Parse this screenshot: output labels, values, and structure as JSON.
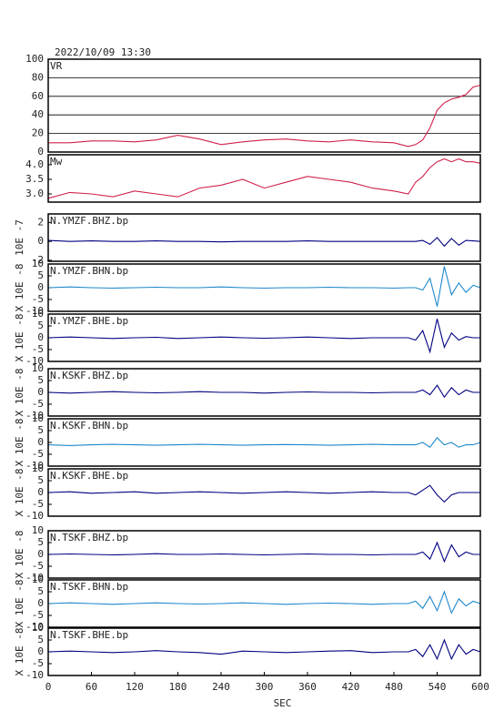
{
  "chart_data": [
    {
      "type": "line",
      "title": "2022/10/09 13:30",
      "label": "VR",
      "color": "#d0204a",
      "grid": true,
      "x": [
        0,
        30,
        60,
        90,
        120,
        150,
        180,
        210,
        240,
        270,
        300,
        330,
        360,
        390,
        420,
        450,
        480,
        500,
        510,
        520,
        530,
        540,
        550,
        560,
        570,
        580,
        590,
        600
      ],
      "values": [
        10,
        10,
        12,
        12,
        11,
        13,
        18,
        14,
        8,
        11,
        13,
        14,
        12,
        11,
        13,
        11,
        10,
        6,
        8,
        13,
        26,
        45,
        53,
        57,
        59,
        62,
        70,
        72
      ],
      "xlim": [
        0,
        600
      ],
      "ylim": [
        0,
        100
      ],
      "yticks": [
        0,
        20,
        40,
        60,
        80,
        100
      ]
    },
    {
      "type": "line",
      "label": "Mw",
      "color": "#d0204a",
      "x": [
        0,
        30,
        60,
        90,
        120,
        150,
        180,
        210,
        240,
        270,
        300,
        330,
        360,
        390,
        420,
        450,
        480,
        500,
        510,
        520,
        530,
        540,
        550,
        560,
        570,
        580,
        590,
        600
      ],
      "values": [
        2.85,
        3.05,
        3.0,
        2.9,
        3.1,
        3.0,
        2.9,
        3.2,
        3.3,
        3.5,
        3.2,
        3.4,
        3.6,
        3.5,
        3.4,
        3.2,
        3.1,
        3.0,
        3.4,
        3.6,
        3.9,
        4.1,
        4.2,
        4.1,
        4.2,
        4.1,
        4.1,
        4.05
      ],
      "xlim": [
        0,
        600
      ],
      "ylim": [
        2.72,
        4.34
      ],
      "yticks": [
        {
          "value": 3,
          "label": "3.0"
        },
        {
          "value": 3.5,
          "label": "3.5"
        },
        {
          "value": 4,
          "label": "4.0"
        }
      ]
    },
    {
      "type": "line",
      "label": "N.YMZF.BHZ.bp",
      "ylabel": "10E -7",
      "color": "#000080",
      "x": [
        0,
        30,
        60,
        90,
        120,
        150,
        180,
        210,
        240,
        270,
        300,
        330,
        360,
        390,
        420,
        450,
        480,
        500,
        510,
        520,
        530,
        540,
        550,
        560,
        570,
        580,
        590,
        600
      ],
      "values": [
        0.1,
        0,
        0.05,
        0,
        0,
        0.05,
        0,
        0,
        -0.05,
        0,
        0,
        0,
        0.05,
        0,
        0,
        0,
        0,
        0,
        0,
        0.1,
        -0.3,
        0.4,
        -0.5,
        0.3,
        -0.4,
        0.1,
        0.05,
        0
      ],
      "xlim": [
        0,
        600
      ],
      "ylim": [
        -2.1,
        2.9
      ],
      "yticks": [
        -2,
        0,
        2
      ]
    },
    {
      "type": "line",
      "label": "N.YMZF.BHN.bp",
      "ylabel": "X 10E -8",
      "color": "#1e88cc",
      "x": [
        0,
        30,
        60,
        90,
        120,
        150,
        180,
        210,
        240,
        270,
        300,
        330,
        360,
        390,
        420,
        450,
        480,
        500,
        510,
        520,
        530,
        540,
        550,
        560,
        570,
        580,
        590,
        600
      ],
      "values": [
        0,
        0.3,
        0,
        -0.2,
        0,
        0.2,
        0,
        0,
        0.3,
        0,
        -0.2,
        0,
        0,
        0.2,
        0,
        0,
        -0.2,
        0,
        0,
        -1,
        4,
        -8,
        9,
        -3,
        2,
        -2,
        1,
        0
      ],
      "xlim": [
        0,
        600
      ],
      "ylim": [
        -10,
        10
      ],
      "yticks": [
        -10,
        -5,
        0,
        5,
        10
      ]
    },
    {
      "type": "line",
      "label": "N.YMZF.BHE.bp",
      "ylabel": "X 10E -8",
      "color": "#000080",
      "x": [
        0,
        30,
        60,
        90,
        120,
        150,
        180,
        210,
        240,
        270,
        300,
        330,
        360,
        390,
        420,
        450,
        480,
        500,
        510,
        520,
        530,
        540,
        550,
        560,
        570,
        580,
        590,
        600
      ],
      "values": [
        0,
        0.3,
        0,
        -0.3,
        0,
        0.2,
        -0.3,
        0,
        0.3,
        0,
        -0.2,
        0,
        0.3,
        0,
        -0.3,
        0,
        0,
        0,
        -1,
        3,
        -6,
        8,
        -4,
        2,
        -1,
        0.5,
        0,
        0
      ],
      "xlim": [
        0,
        600
      ],
      "ylim": [
        -10,
        10
      ],
      "yticks": [
        -10,
        -5,
        0,
        5,
        10
      ]
    },
    {
      "type": "line",
      "label": "N.KSKF.BHZ.bp",
      "ylabel": "X 10E -8",
      "color": "#000080",
      "x": [
        0,
        30,
        60,
        90,
        120,
        150,
        180,
        210,
        240,
        270,
        300,
        330,
        360,
        390,
        420,
        450,
        480,
        500,
        510,
        520,
        530,
        540,
        550,
        560,
        570,
        580,
        590,
        600
      ],
      "values": [
        0,
        -0.3,
        0,
        0.3,
        0,
        -0.2,
        0,
        0.3,
        0,
        0,
        -0.3,
        0,
        0.2,
        0,
        0,
        -0.2,
        0,
        0,
        0,
        1,
        -1,
        3,
        -2,
        2,
        -1,
        1,
        0,
        0
      ],
      "xlim": [
        0,
        600
      ],
      "ylim": [
        -10,
        10
      ],
      "yticks": [
        -10,
        -5,
        0,
        5,
        10
      ]
    },
    {
      "type": "line",
      "label": "N.KSKF.BHN.bp",
      "ylabel": "X 10E -8",
      "color": "#1e88cc",
      "x": [
        0,
        30,
        60,
        90,
        120,
        150,
        180,
        210,
        240,
        270,
        300,
        330,
        360,
        390,
        420,
        450,
        480,
        500,
        510,
        520,
        530,
        540,
        550,
        560,
        570,
        580,
        590,
        600
      ],
      "values": [
        -1,
        -1.3,
        -1,
        -0.8,
        -1,
        -1.2,
        -1,
        -0.8,
        -1,
        -1.2,
        -1,
        -0.9,
        -1,
        -1.2,
        -1,
        -0.8,
        -1,
        -1,
        -1,
        0,
        -2,
        2,
        -1,
        0,
        -2,
        -1,
        -1,
        0
      ],
      "xlim": [
        0,
        600
      ],
      "ylim": [
        -10,
        10
      ],
      "yticks": [
        -10,
        -5,
        0,
        5,
        10
      ]
    },
    {
      "type": "line",
      "label": "N.KSKF.BHE.bp",
      "ylabel": "X 10E -8",
      "color": "#000080",
      "x": [
        0,
        30,
        60,
        90,
        120,
        150,
        180,
        210,
        240,
        270,
        300,
        330,
        360,
        390,
        420,
        450,
        480,
        500,
        510,
        520,
        530,
        540,
        550,
        560,
        570,
        580,
        590,
        600
      ],
      "values": [
        0,
        0.3,
        -0.3,
        0,
        0.3,
        -0.3,
        0,
        0.3,
        0,
        -0.3,
        0,
        0.3,
        0,
        -0.3,
        0,
        0.3,
        0,
        0,
        -1,
        1,
        3,
        -1,
        -4,
        -1,
        0,
        0,
        0,
        0
      ],
      "xlim": [
        0,
        600
      ],
      "ylim": [
        -10,
        10
      ],
      "yticks": [
        -10,
        -5,
        0,
        5,
        10
      ]
    },
    {
      "type": "line",
      "label": "N.TSKF.BHZ.bp",
      "ylabel": "X 10E -8",
      "color": "#000080",
      "x": [
        0,
        30,
        60,
        90,
        120,
        150,
        180,
        210,
        240,
        270,
        300,
        330,
        360,
        390,
        420,
        450,
        480,
        500,
        510,
        520,
        530,
        540,
        550,
        560,
        570,
        580,
        590,
        600
      ],
      "values": [
        0,
        0.2,
        0,
        -0.2,
        0,
        0.3,
        0,
        0,
        0.2,
        0,
        -0.2,
        0,
        0.2,
        0,
        0,
        -0.2,
        0,
        0,
        0,
        1,
        -2,
        5,
        -3,
        4,
        -1,
        1,
        0,
        0
      ],
      "xlim": [
        0,
        600
      ],
      "ylim": [
        -10,
        10
      ],
      "yticks": [
        -10,
        -5,
        0,
        5,
        10
      ]
    },
    {
      "type": "line",
      "label": "N.TSKF.BHN.bp",
      "ylabel": "X 10E -8",
      "color": "#1e88cc",
      "x": [
        0,
        30,
        60,
        90,
        120,
        150,
        180,
        210,
        240,
        270,
        300,
        330,
        360,
        390,
        420,
        450,
        480,
        500,
        510,
        520,
        530,
        540,
        550,
        560,
        570,
        580,
        590,
        600
      ],
      "values": [
        0,
        0.3,
        0,
        -0.3,
        0,
        0.3,
        0,
        -0.2,
        0,
        0.3,
        0,
        -0.3,
        0,
        0.2,
        0,
        -0.3,
        0,
        0,
        1,
        -2,
        3,
        -3,
        5,
        -4,
        2,
        -1,
        1,
        0
      ],
      "xlim": [
        0,
        600
      ],
      "ylim": [
        -10,
        10
      ],
      "yticks": [
        -10,
        -5,
        0,
        5,
        10
      ]
    },
    {
      "type": "line",
      "label": "N.TSKF.BHE.bp",
      "ylabel": "X 10E -8",
      "color": "#000080",
      "xlabel": "SEC",
      "x": [
        0,
        30,
        60,
        90,
        120,
        150,
        180,
        210,
        240,
        270,
        300,
        330,
        360,
        390,
        420,
        450,
        480,
        500,
        510,
        520,
        530,
        540,
        550,
        560,
        570,
        580,
        590,
        600
      ],
      "values": [
        0,
        0.3,
        0,
        -0.3,
        0,
        0.5,
        0,
        -0.3,
        -1,
        0.3,
        0,
        -0.3,
        0,
        0.3,
        0.5,
        -0.3,
        0,
        0,
        1,
        -2,
        3,
        -3,
        5,
        -3,
        3,
        -1,
        1,
        0
      ],
      "xlim": [
        0,
        600
      ],
      "ylim": [
        -10,
        10
      ],
      "yticks": [
        -10,
        -5,
        0,
        5,
        10
      ],
      "xticks": [
        0,
        60,
        120,
        180,
        240,
        300,
        360,
        420,
        480,
        540,
        600
      ]
    }
  ]
}
